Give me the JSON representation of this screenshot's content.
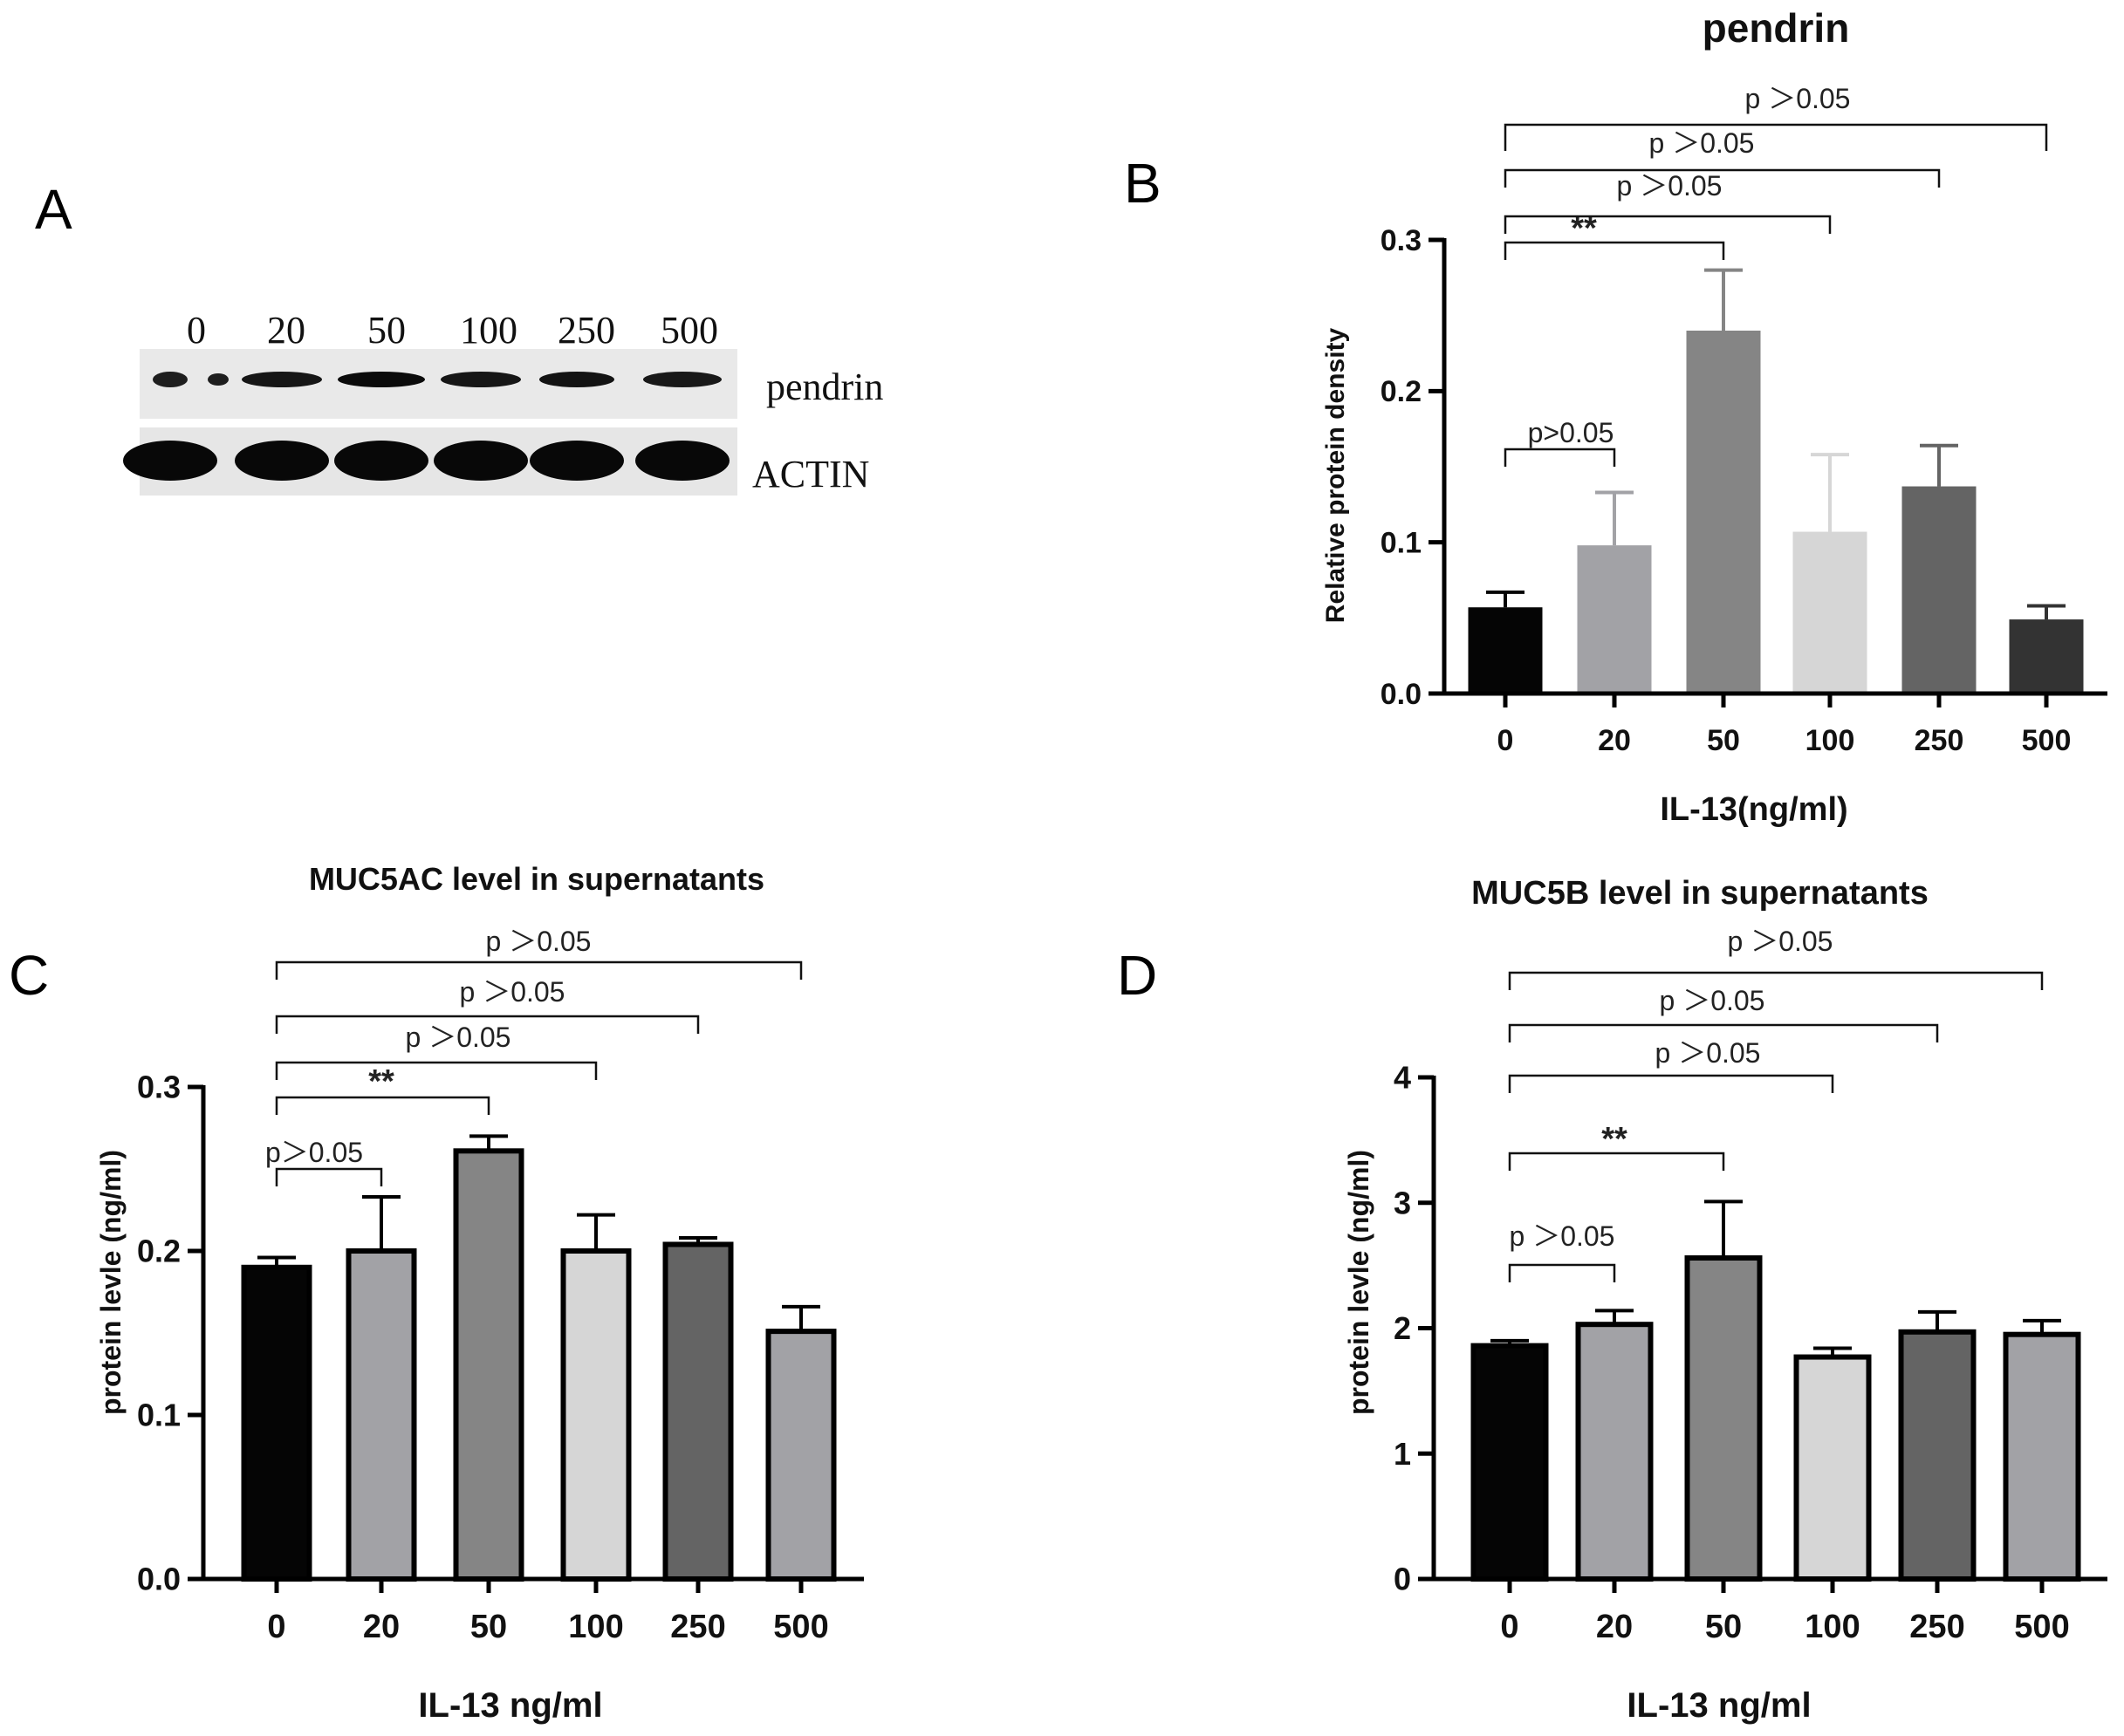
{
  "panel_letters": {
    "a": "A",
    "b": "B",
    "c": "C",
    "d": "D"
  },
  "blot": {
    "lane_labels": [
      "0",
      "20",
      "50",
      "100",
      "250",
      "500"
    ],
    "rows": [
      {
        "label": "pendrin",
        "intensity": [
          0.55,
          0.7,
          0.9,
          0.7,
          0.75,
          0.65
        ]
      },
      {
        "label": "ACTIN",
        "intensity": [
          0.95,
          0.95,
          0.95,
          0.95,
          0.95,
          0.95
        ]
      }
    ]
  },
  "chart_data": [
    {
      "panel": "B",
      "type": "bar",
      "title": "pendrin",
      "xlabel": "IL-13(ng/ml)",
      "ylabel": "Relative protein density",
      "categories": [
        "0",
        "20",
        "50",
        "100",
        "250",
        "500"
      ],
      "values": [
        0.057,
        0.098,
        0.24,
        0.107,
        0.137,
        0.049
      ],
      "errors": [
        0.01,
        0.035,
        0.04,
        0.051,
        0.027,
        0.009
      ],
      "colors": [
        "#050505",
        "#a2a2a6",
        "#858585",
        "#d6d6d6",
        "#646464",
        "#333333"
      ],
      "ylim": [
        0,
        0.3
      ],
      "yticks": [
        "0.0",
        "0.1",
        "0.2",
        "0.3"
      ],
      "ytick_values": [
        0,
        0.1,
        0.2,
        0.3
      ],
      "significance": [
        {
          "from": 0,
          "to": 1,
          "label": "p>0.05"
        },
        {
          "from": 0,
          "to": 2,
          "label": "**"
        },
        {
          "from": 0,
          "to": 3,
          "label": "p ＞0.05"
        },
        {
          "from": 0,
          "to": 4,
          "label": "p ＞0.05"
        },
        {
          "from": 0,
          "to": 5,
          "label": "p ＞0.05"
        }
      ]
    },
    {
      "panel": "C",
      "type": "bar",
      "title": "MUC5AC level in supernatants",
      "xlabel": "IL-13 ng/ml",
      "ylabel": "protein levle (ng/ml)",
      "categories": [
        "0",
        "20",
        "50",
        "100",
        "250",
        "500"
      ],
      "values": [
        0.19,
        0.2,
        0.261,
        0.2,
        0.204,
        0.151
      ],
      "errors": [
        0.006,
        0.033,
        0.009,
        0.022,
        0.004,
        0.015
      ],
      "colors": [
        "#050505",
        "#a2a2a6",
        "#858585",
        "#d6d6d6",
        "#646464",
        "#a2a2a6"
      ],
      "ylim": [
        0,
        0.3
      ],
      "yticks": [
        "0.0",
        "0.1",
        "0.2",
        "0.3"
      ],
      "ytick_values": [
        0,
        0.1,
        0.2,
        0.3
      ],
      "significance": [
        {
          "from": 0,
          "to": 1,
          "label": "p＞0.05"
        },
        {
          "from": 0,
          "to": 2,
          "label": "**"
        },
        {
          "from": 0,
          "to": 3,
          "label": "p ＞0.05"
        },
        {
          "from": 0,
          "to": 4,
          "label": "p ＞0.05"
        },
        {
          "from": 0,
          "to": 5,
          "label": "p ＞0.05"
        }
      ]
    },
    {
      "panel": "D",
      "type": "bar",
      "title": "MUC5B level in supernatants",
      "xlabel": "IL-13 ng/ml",
      "ylabel": "protein levle (ng/ml)",
      "categories": [
        "0",
        "20",
        "50",
        "100",
        "250",
        "500"
      ],
      "values": [
        1.86,
        2.03,
        2.56,
        1.77,
        1.97,
        1.95
      ],
      "errors": [
        0.04,
        0.11,
        0.45,
        0.07,
        0.16,
        0.11
      ],
      "colors": [
        "#050505",
        "#a2a2a6",
        "#858585",
        "#d6d6d6",
        "#646464",
        "#a2a2a6"
      ],
      "ylim": [
        0,
        4
      ],
      "yticks": [
        "0",
        "1",
        "2",
        "3",
        "4"
      ],
      "ytick_values": [
        0,
        1,
        2,
        3,
        4
      ],
      "significance": [
        {
          "from": 0,
          "to": 1,
          "label": "p ＞0.05"
        },
        {
          "from": 0,
          "to": 2,
          "label": "**"
        },
        {
          "from": 0,
          "to": 3,
          "label": "p ＞0.05"
        },
        {
          "from": 0,
          "to": 4,
          "label": "p ＞0.05"
        },
        {
          "from": 0,
          "to": 5,
          "label": "p ＞0.05"
        }
      ]
    }
  ]
}
